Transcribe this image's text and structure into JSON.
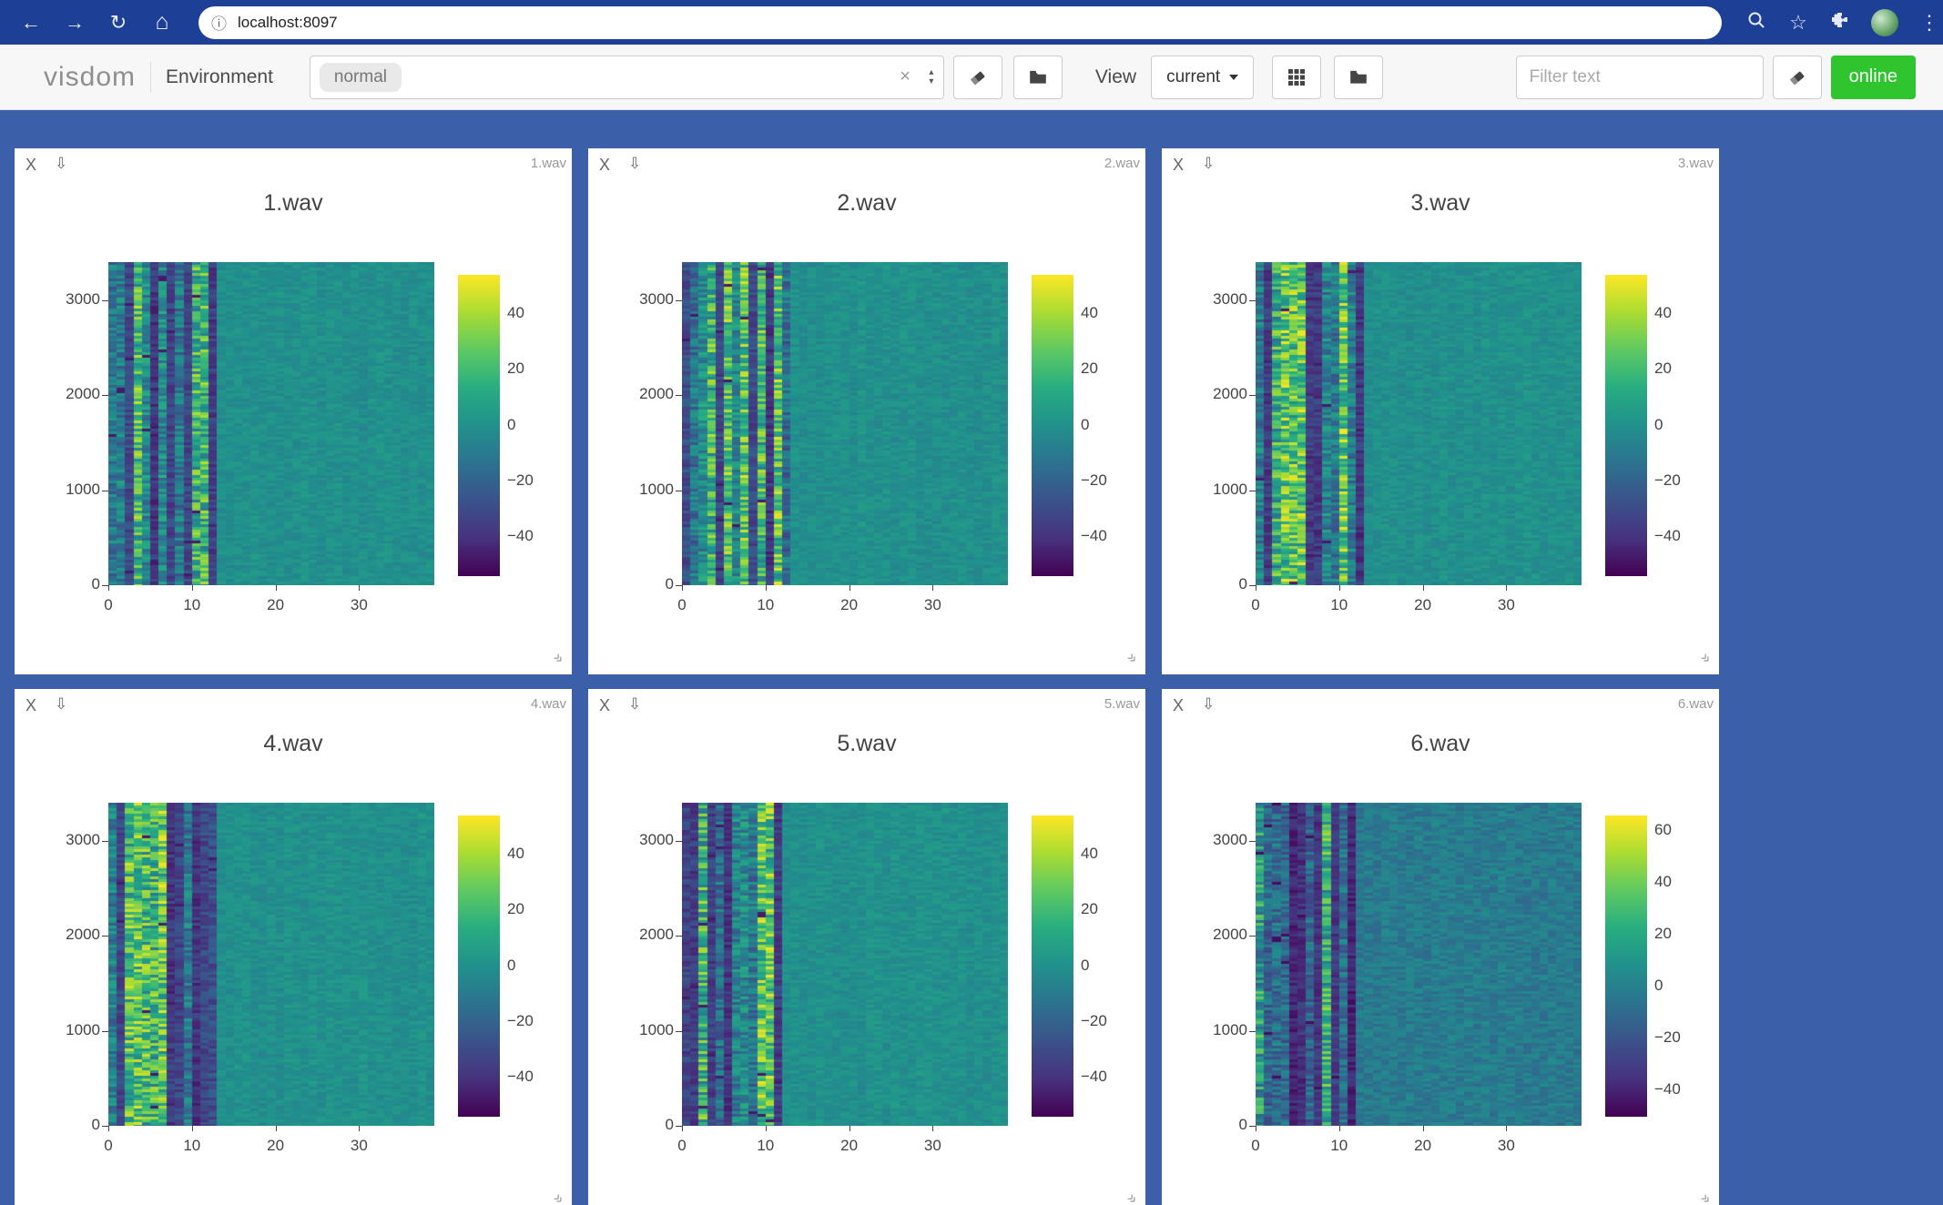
{
  "colors": {
    "topbar_bg": "#1e3f96",
    "page_bg": "#3b5fa9",
    "toolbar_bg": "#f7f7f7",
    "online_green": "#2ec52e"
  },
  "browser": {
    "url": "localhost:8097",
    "icons": {
      "back": "←",
      "forward": "→",
      "reload": "↻",
      "home": "⌂",
      "info": "ⓘ",
      "star": "☆",
      "overflow": "⋮"
    }
  },
  "toolbar": {
    "logo": "visdom",
    "environment_label": "Environment",
    "environment_value": "normal",
    "clear_glyph": "×",
    "spin_up": "▴",
    "spin_down": "▾",
    "view_label": "View",
    "view_value": "current",
    "filter_placeholder": "Filter text",
    "online_label": "online"
  },
  "pane_controls": {
    "close": "X",
    "pin": "⇩",
    "resize": "»"
  },
  "chart_data": [
    {
      "type": "heatmap",
      "title": "1.wav",
      "colormap": "viridis",
      "x_ticks": [
        0,
        10,
        20,
        30
      ],
      "y_ticks": [
        0,
        1000,
        2000,
        3000
      ],
      "x_range": [
        0,
        39
      ],
      "y_range": [
        0,
        3400
      ],
      "zmin": -54,
      "zmax": 54,
      "colorbar_ticks": [
        40,
        20,
        0,
        -20,
        -40
      ],
      "seed": 3,
      "stripe_cols": 13,
      "bright_prob": 0.3,
      "bg_noise": 5,
      "bg_base": 0
    },
    {
      "type": "heatmap",
      "title": "2.wav",
      "colormap": "viridis",
      "x_ticks": [
        0,
        10,
        20,
        30
      ],
      "y_ticks": [
        0,
        1000,
        2000,
        3000
      ],
      "x_range": [
        0,
        39
      ],
      "y_range": [
        0,
        3400
      ],
      "zmin": -54,
      "zmax": 54,
      "colorbar_ticks": [
        40,
        20,
        0,
        -20,
        -40
      ],
      "seed": 8,
      "stripe_cols": 13,
      "bright_prob": 0.3,
      "bg_noise": 5,
      "bg_base": 0
    },
    {
      "type": "heatmap",
      "title": "3.wav",
      "colormap": "viridis",
      "x_ticks": [
        0,
        10,
        20,
        30
      ],
      "y_ticks": [
        0,
        1000,
        2000,
        3000
      ],
      "x_range": [
        0,
        39
      ],
      "y_range": [
        0,
        3400
      ],
      "zmin": -54,
      "zmax": 54,
      "colorbar_ticks": [
        40,
        20,
        0,
        -20,
        -40
      ],
      "seed": 15,
      "stripe_cols": 13,
      "bright_prob": 0.32,
      "bg_noise": 5,
      "bg_base": 0
    },
    {
      "type": "heatmap",
      "title": "4.wav",
      "colormap": "viridis",
      "x_ticks": [
        0,
        10,
        20,
        30
      ],
      "y_ticks": [
        0,
        1000,
        2000,
        3000
      ],
      "x_range": [
        0,
        39
      ],
      "y_range": [
        0,
        3400
      ],
      "zmin": -54,
      "zmax": 54,
      "colorbar_ticks": [
        40,
        20,
        0,
        -20,
        -40
      ],
      "seed": 23,
      "stripe_cols": 13,
      "bright_prob": 0.3,
      "bg_noise": 5,
      "bg_base": 0
    },
    {
      "type": "heatmap",
      "title": "5.wav",
      "colormap": "viridis",
      "x_ticks": [
        0,
        10,
        20,
        30
      ],
      "y_ticks": [
        0,
        1000,
        2000,
        3000
      ],
      "x_range": [
        0,
        39
      ],
      "y_range": [
        0,
        3400
      ],
      "zmin": -54,
      "zmax": 54,
      "colorbar_ticks": [
        40,
        20,
        0,
        -20,
        -40
      ],
      "seed": 31,
      "stripe_cols": 12,
      "bright_prob": 0.34,
      "bg_noise": 5,
      "bg_base": 0
    },
    {
      "type": "heatmap",
      "title": "6.wav",
      "colormap": "viridis",
      "x_ticks": [
        0,
        10,
        20,
        30
      ],
      "y_ticks": [
        0,
        1000,
        2000,
        3000
      ],
      "x_range": [
        0,
        39
      ],
      "y_range": [
        0,
        3400
      ],
      "zmin": -50,
      "zmax": 66,
      "colorbar_ticks": [
        60,
        40,
        20,
        0,
        -20,
        -40
      ],
      "seed": 47,
      "stripe_cols": 12,
      "bright_prob": 0.16,
      "bg_noise": 8,
      "bg_base": -2
    }
  ]
}
